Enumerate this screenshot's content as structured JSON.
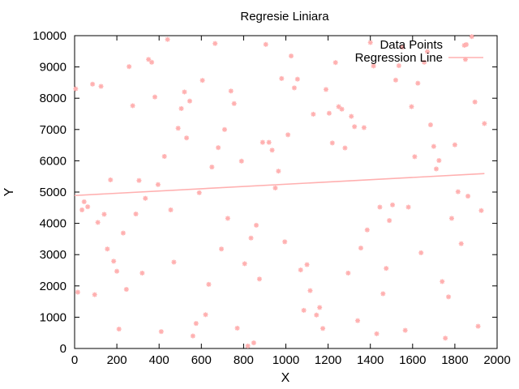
{
  "chart_data": {
    "type": "scatter",
    "title": "Regresie Liniara",
    "xlabel": "X",
    "ylabel": "Y",
    "xlim": [
      0,
      2000
    ],
    "ylim": [
      0,
      10000
    ],
    "xticks": [
      0,
      200,
      400,
      600,
      800,
      1000,
      1200,
      1400,
      1600,
      1800,
      2000
    ],
    "yticks": [
      0,
      1000,
      2000,
      3000,
      4000,
      5000,
      6000,
      7000,
      8000,
      9000,
      10000
    ],
    "grid": false,
    "legend_position": "top-right",
    "colors": {
      "points": "#ffb0b0",
      "line": "#ffb0b0"
    },
    "series": [
      {
        "name": "Data Points",
        "kind": "points",
        "points": [
          [
            5,
            8300
          ],
          [
            15,
            1800
          ],
          [
            35,
            4430
          ],
          [
            45,
            4690
          ],
          [
            62,
            4530
          ],
          [
            85,
            8450
          ],
          [
            95,
            1720
          ],
          [
            110,
            4030
          ],
          [
            125,
            8380
          ],
          [
            140,
            4290
          ],
          [
            155,
            3180
          ],
          [
            170,
            5390
          ],
          [
            185,
            2790
          ],
          [
            200,
            2470
          ],
          [
            210,
            620
          ],
          [
            230,
            3690
          ],
          [
            245,
            1890
          ],
          [
            258,
            9010
          ],
          [
            275,
            7760
          ],
          [
            290,
            4300
          ],
          [
            305,
            5370
          ],
          [
            320,
            2410
          ],
          [
            335,
            4800
          ],
          [
            350,
            9240
          ],
          [
            365,
            9150
          ],
          [
            380,
            8040
          ],
          [
            395,
            5240
          ],
          [
            410,
            540
          ],
          [
            425,
            6140
          ],
          [
            440,
            9880
          ],
          [
            455,
            4430
          ],
          [
            470,
            2760
          ],
          [
            490,
            7040
          ],
          [
            505,
            7670
          ],
          [
            520,
            8200
          ],
          [
            530,
            6730
          ],
          [
            545,
            7910
          ],
          [
            560,
            400
          ],
          [
            575,
            800
          ],
          [
            590,
            4980
          ],
          [
            605,
            8570
          ],
          [
            620,
            1080
          ],
          [
            635,
            2050
          ],
          [
            650,
            5800
          ],
          [
            665,
            9750
          ],
          [
            680,
            6420
          ],
          [
            695,
            3180
          ],
          [
            710,
            7000
          ],
          [
            725,
            4160
          ],
          [
            740,
            8230
          ],
          [
            755,
            7830
          ],
          [
            770,
            650
          ],
          [
            790,
            5990
          ],
          [
            805,
            2710
          ],
          [
            820,
            80
          ],
          [
            835,
            3530
          ],
          [
            848,
            180
          ],
          [
            860,
            3940
          ],
          [
            875,
            2220
          ],
          [
            890,
            6590
          ],
          [
            905,
            9720
          ],
          [
            920,
            6590
          ],
          [
            935,
            6340
          ],
          [
            950,
            5130
          ],
          [
            965,
            5670
          ],
          [
            980,
            8630
          ],
          [
            995,
            3410
          ],
          [
            1010,
            6830
          ],
          [
            1025,
            9350
          ],
          [
            1040,
            8330
          ],
          [
            1055,
            8610
          ],
          [
            1070,
            2510
          ],
          [
            1085,
            1220
          ],
          [
            1100,
            2680
          ],
          [
            1115,
            1850
          ],
          [
            1130,
            7490
          ],
          [
            1145,
            1070
          ],
          [
            1160,
            1310
          ],
          [
            1175,
            640
          ],
          [
            1190,
            8280
          ],
          [
            1205,
            7520
          ],
          [
            1220,
            6570
          ],
          [
            1235,
            9140
          ],
          [
            1250,
            7730
          ],
          [
            1265,
            7650
          ],
          [
            1280,
            6410
          ],
          [
            1295,
            2410
          ],
          [
            1310,
            7420
          ],
          [
            1325,
            7090
          ],
          [
            1340,
            890
          ],
          [
            1355,
            3210
          ],
          [
            1370,
            7060
          ],
          [
            1385,
            3790
          ],
          [
            1400,
            9780
          ],
          [
            1415,
            9030
          ],
          [
            1430,
            470
          ],
          [
            1445,
            4520
          ],
          [
            1460,
            1750
          ],
          [
            1475,
            2560
          ],
          [
            1490,
            4090
          ],
          [
            1505,
            4590
          ],
          [
            1520,
            8580
          ],
          [
            1535,
            9040
          ],
          [
            1550,
            9630
          ],
          [
            1565,
            580
          ],
          [
            1580,
            4520
          ],
          [
            1595,
            7730
          ],
          [
            1610,
            6130
          ],
          [
            1625,
            8480
          ],
          [
            1640,
            3060
          ],
          [
            1655,
            9150
          ],
          [
            1670,
            9490
          ],
          [
            1685,
            7150
          ],
          [
            1700,
            6460
          ],
          [
            1712,
            5740
          ],
          [
            1725,
            6010
          ],
          [
            1740,
            2140
          ],
          [
            1755,
            330
          ],
          [
            1770,
            1650
          ],
          [
            1785,
            4160
          ],
          [
            1800,
            6510
          ],
          [
            1815,
            5010
          ],
          [
            1830,
            3350
          ],
          [
            1845,
            9690
          ],
          [
            1850,
            9240
          ],
          [
            1862,
            4870
          ],
          [
            1880,
            9970
          ],
          [
            1895,
            7880
          ],
          [
            1910,
            710
          ],
          [
            1925,
            4410
          ],
          [
            1940,
            7190
          ]
        ]
      },
      {
        "name": "Regression Line",
        "kind": "line",
        "points": [
          [
            0,
            4890
          ],
          [
            1940,
            5590
          ]
        ]
      }
    ]
  }
}
